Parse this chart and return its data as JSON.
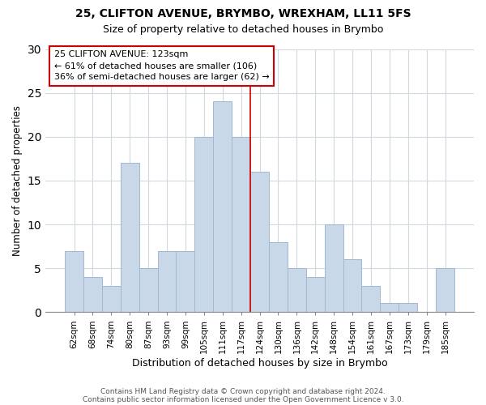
{
  "title": "25, CLIFTON AVENUE, BRYMBO, WREXHAM, LL11 5FS",
  "subtitle": "Size of property relative to detached houses in Brymbo",
  "xlabel": "Distribution of detached houses by size in Brymbo",
  "ylabel": "Number of detached properties",
  "bar_color": "#c8d8e8",
  "bar_edge_color": "#a0b8d0",
  "categories": [
    "62sqm",
    "68sqm",
    "74sqm",
    "80sqm",
    "87sqm",
    "93sqm",
    "99sqm",
    "105sqm",
    "111sqm",
    "117sqm",
    "124sqm",
    "130sqm",
    "136sqm",
    "142sqm",
    "148sqm",
    "154sqm",
    "161sqm",
    "167sqm",
    "173sqm",
    "179sqm",
    "185sqm"
  ],
  "values": [
    7,
    4,
    3,
    17,
    5,
    7,
    7,
    20,
    24,
    20,
    16,
    8,
    5,
    4,
    10,
    6,
    3,
    1,
    1,
    0,
    5
  ],
  "ylim": [
    0,
    30
  ],
  "yticks": [
    0,
    5,
    10,
    15,
    20,
    25,
    30
  ],
  "vline_x_index": 9.5,
  "vline_color": "#cc0000",
  "annotation_title": "25 CLIFTON AVENUE: 123sqm",
  "annotation_line1": "← 61% of detached houses are smaller (106)",
  "annotation_line2": "36% of semi-detached houses are larger (62) →",
  "footer1": "Contains HM Land Registry data © Crown copyright and database right 2024.",
  "footer2": "Contains public sector information licensed under the Open Government Licence v 3.0.",
  "background_color": "#ffffff",
  "grid_color": "#d0d8e0"
}
